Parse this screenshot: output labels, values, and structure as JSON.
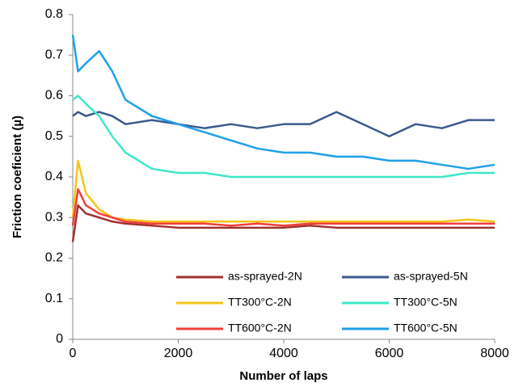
{
  "chart_data": {
    "type": "line",
    "xlabel": "Number of laps",
    "ylabel": "Friction coeficient (µ)",
    "x": [
      0,
      100,
      250,
      500,
      750,
      1000,
      1500,
      2000,
      2500,
      3000,
      3500,
      4000,
      4500,
      5000,
      5500,
      6000,
      6500,
      7000,
      7500,
      8000
    ],
    "xlim": [
      0,
      8000
    ],
    "xticks": [
      0,
      2000,
      4000,
      6000,
      8000
    ],
    "ylim": [
      0,
      0.8
    ],
    "yticks": [
      0,
      0.1,
      0.2,
      0.3,
      0.4,
      0.5,
      0.6,
      0.7,
      0.8
    ],
    "grid": false,
    "legend": "lower-right",
    "series": [
      {
        "name": "as-sprayed-2N",
        "color": "#a0322d",
        "values": [
          0.24,
          0.33,
          0.31,
          0.3,
          0.29,
          0.285,
          0.28,
          0.275,
          0.275,
          0.275,
          0.275,
          0.275,
          0.28,
          0.275,
          0.275,
          0.275,
          0.275,
          0.275,
          0.275,
          0.275
        ]
      },
      {
        "name": "as-sprayed-5N",
        "color": "#3a5a8c",
        "values": [
          0.55,
          0.56,
          0.55,
          0.56,
          0.55,
          0.53,
          0.54,
          0.53,
          0.52,
          0.53,
          0.52,
          0.53,
          0.53,
          0.56,
          0.53,
          0.5,
          0.53,
          0.52,
          0.54,
          0.54
        ]
      },
      {
        "name": "TT300°C-2N",
        "color": "#f5c518",
        "values": [
          0.3,
          0.44,
          0.36,
          0.32,
          0.3,
          0.295,
          0.29,
          0.29,
          0.29,
          0.29,
          0.29,
          0.29,
          0.29,
          0.29,
          0.29,
          0.29,
          0.29,
          0.29,
          0.295,
          0.29
        ]
      },
      {
        "name": "TT300°C-5N",
        "color": "#3ee8c8",
        "values": [
          0.59,
          0.6,
          0.58,
          0.55,
          0.5,
          0.46,
          0.42,
          0.41,
          0.41,
          0.4,
          0.4,
          0.4,
          0.4,
          0.4,
          0.4,
          0.4,
          0.4,
          0.4,
          0.41,
          0.41
        ]
      },
      {
        "name": "TT600°C-2N",
        "color": "#f0403c",
        "values": [
          0.28,
          0.37,
          0.33,
          0.31,
          0.3,
          0.29,
          0.285,
          0.285,
          0.285,
          0.28,
          0.285,
          0.28,
          0.285,
          0.285,
          0.285,
          0.285,
          0.285,
          0.285,
          0.285,
          0.285
        ]
      },
      {
        "name": "TT600°C-5N",
        "color": "#1ea0e8",
        "values": [
          0.75,
          0.66,
          0.68,
          0.71,
          0.66,
          0.59,
          0.55,
          0.53,
          0.51,
          0.49,
          0.47,
          0.46,
          0.46,
          0.45,
          0.45,
          0.44,
          0.44,
          0.43,
          0.42,
          0.43
        ]
      }
    ]
  }
}
